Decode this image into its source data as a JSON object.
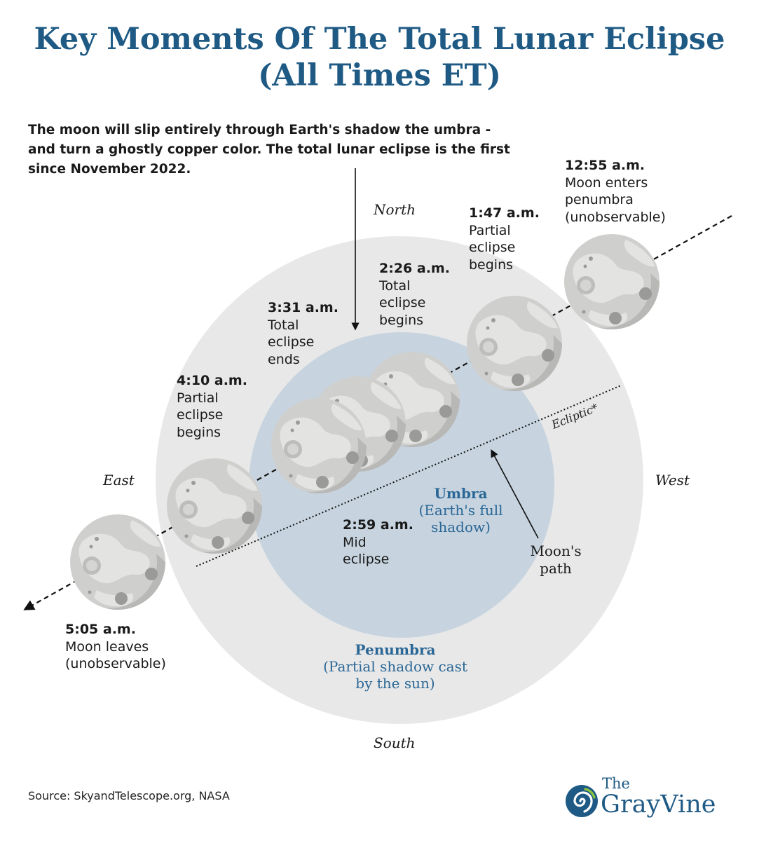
{
  "title": {
    "line1": "Key Moments Of The Total Lunar Eclipse",
    "line2": "(All Times ET)"
  },
  "intro": {
    "line1": "The moon will slip entirely through Earth's shadow the umbra -",
    "line2": "and turn a ghostly copper color. The total lunar eclipse is the first",
    "line3": "since November 2022."
  },
  "directions": {
    "north": "North",
    "south": "South",
    "east": "East",
    "west": "West"
  },
  "events": [
    {
      "time": "12:55 a.m.",
      "desc": [
        "Moon enters",
        "penumbra",
        "(unobservable)"
      ]
    },
    {
      "time": "1:47 a.m.",
      "desc": [
        "Partial",
        "eclipse",
        "begins"
      ]
    },
    {
      "time": "2:26 a.m.",
      "desc": [
        "Total",
        "eclipse",
        "begins"
      ]
    },
    {
      "time": "3:31 a.m.",
      "desc": [
        "Total",
        "eclipse",
        "ends"
      ]
    },
    {
      "time": "4:10 a.m.",
      "desc": [
        "Partial",
        "eclipse",
        "begins"
      ]
    },
    {
      "time": "2:59 a.m.",
      "desc": [
        "Mid",
        "eclipse"
      ]
    },
    {
      "time": "5:05 a.m.",
      "desc": [
        "Moon leaves",
        "(unobservable)"
      ]
    }
  ],
  "umbra": {
    "name": "Umbra",
    "desc": [
      "(Earth's full",
      "shadow)"
    ]
  },
  "penumbra": {
    "name": "Penumbra",
    "desc": [
      "(Partial shadow cast",
      "by the sun)"
    ]
  },
  "ecliptic_label": "Ecliptic*",
  "moon_path_label": [
    "Moon's",
    "path"
  ],
  "source": "Source: SkyandTelescope.org, NASA",
  "logo": {
    "the": "The",
    "name_part1": "Gray",
    "name_part2": "Vine"
  },
  "colors": {
    "title": "#1e5a84",
    "penumbra": "#e8e8e8",
    "umbra": "#c7d4df",
    "moon": "#cfcfcd",
    "moon_light": "#e4e4e2",
    "moon_shadow": "#b1b1af",
    "zone_text": "#2a6796",
    "logo_green": "#8cc63f"
  }
}
